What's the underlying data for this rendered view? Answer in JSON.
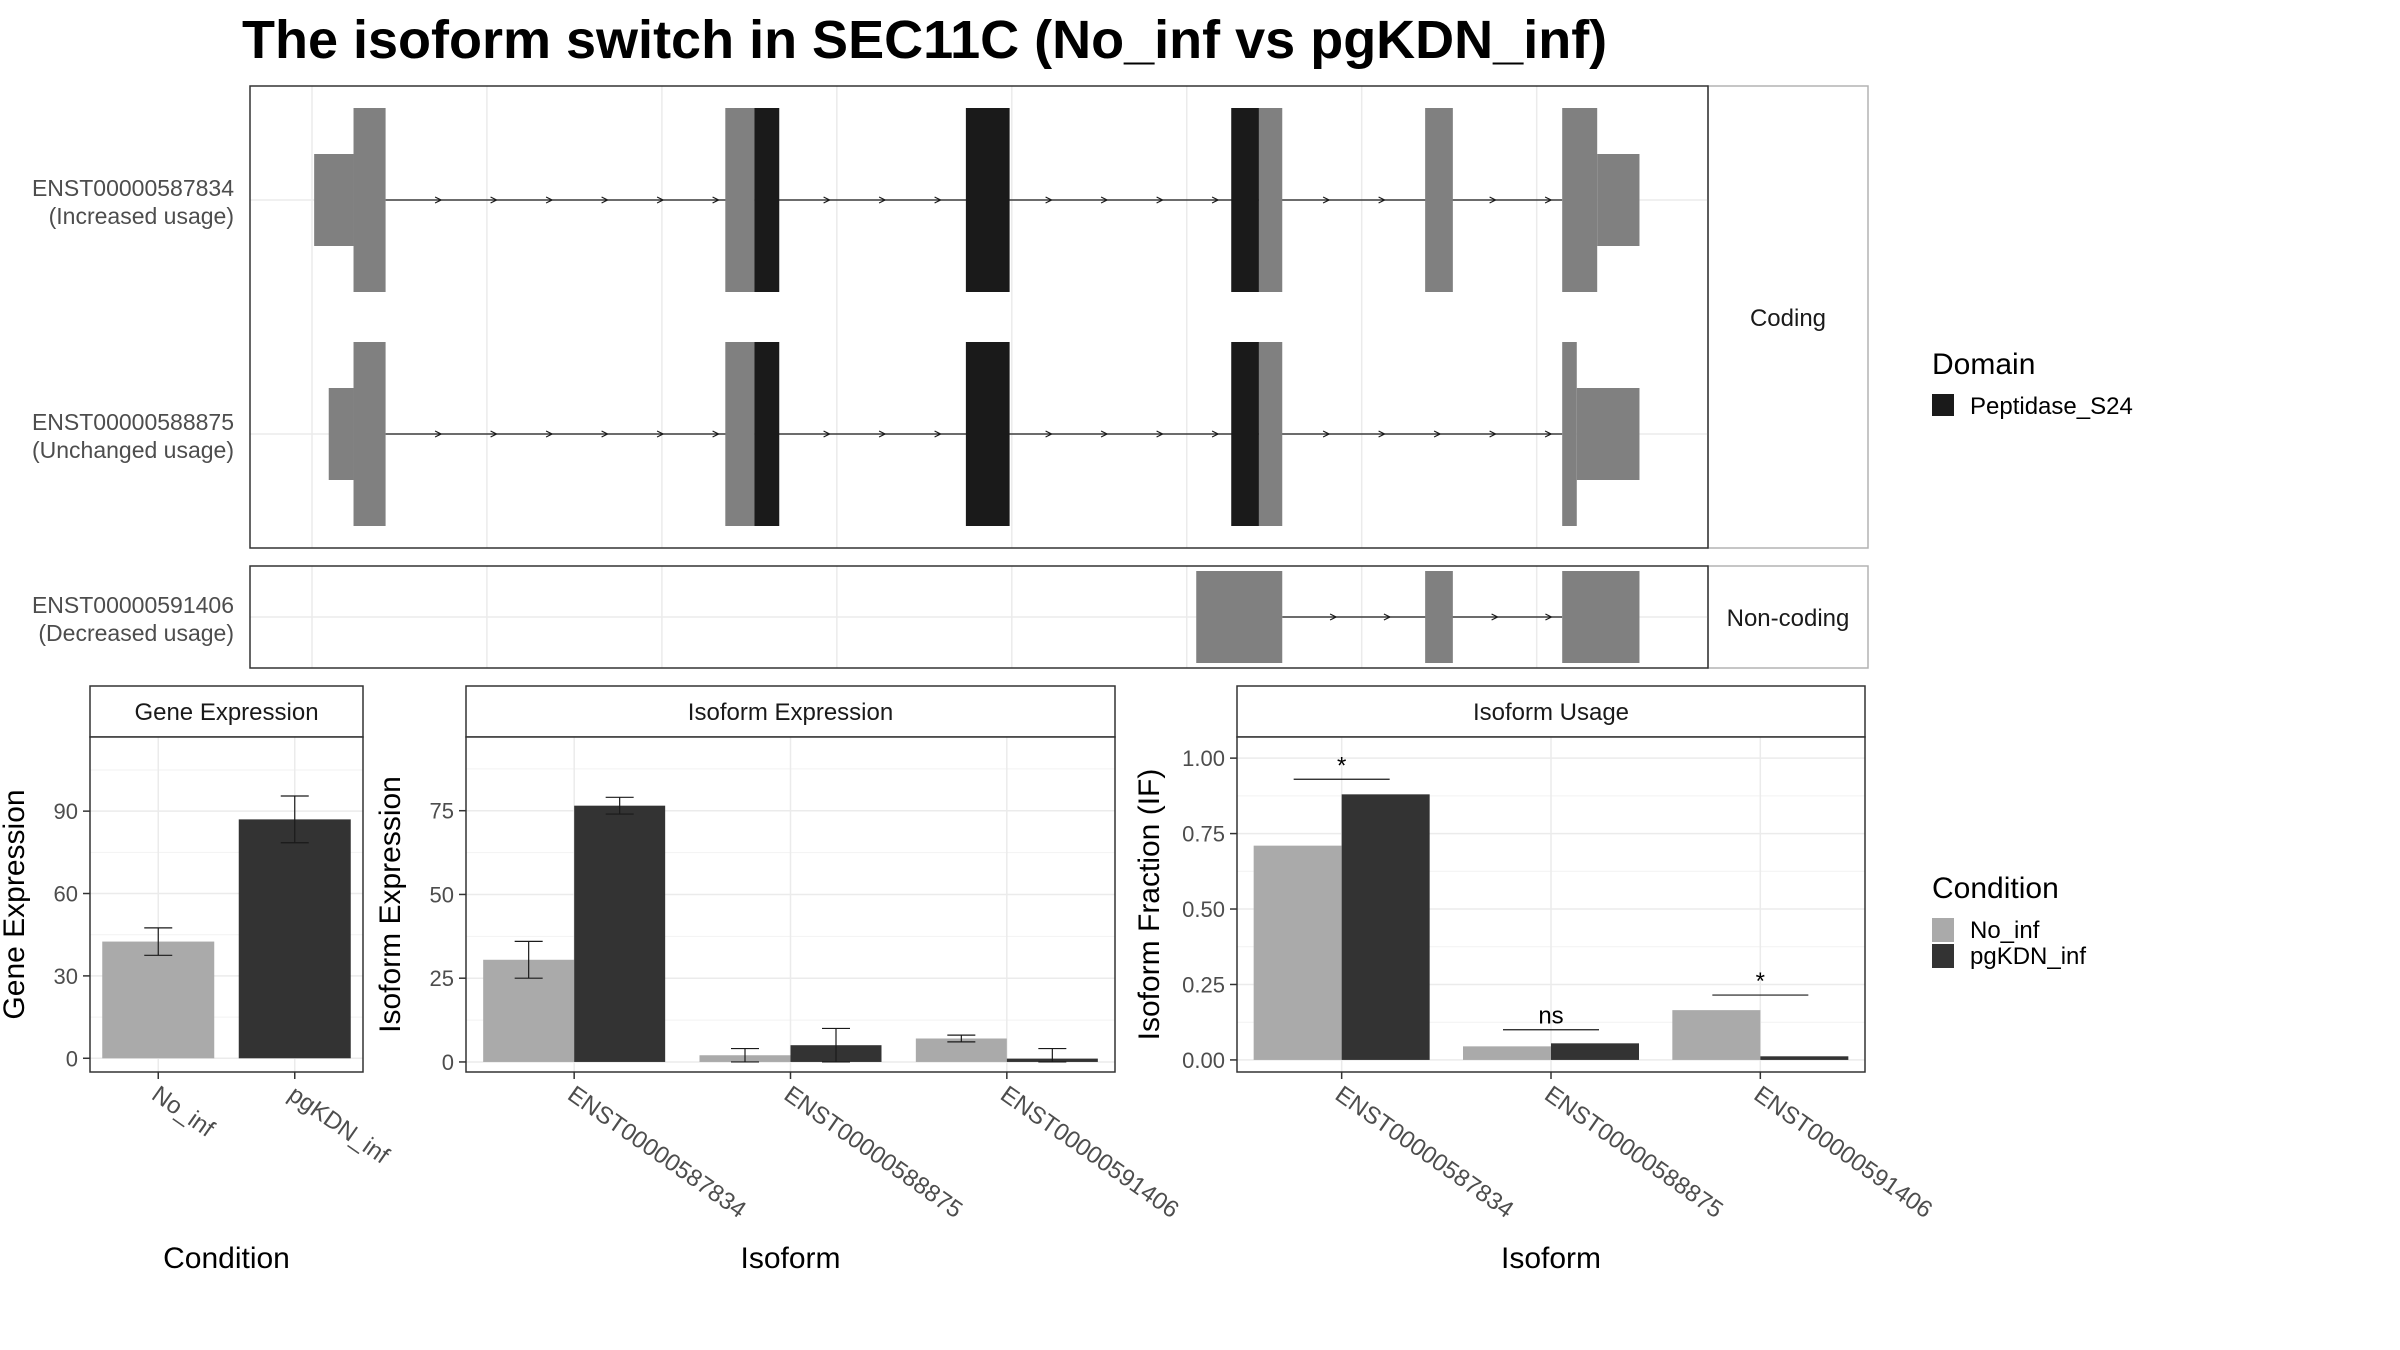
{
  "title": "The isoform switch in SEC11C (No_inf vs pgKDN_inf)",
  "colors": {
    "no_inf": "#aaaaaa",
    "pgkdn_inf": "#333333",
    "exon": "#808080",
    "domain": "#1a1a1a",
    "grid": "#ebebeb",
    "panel_border": "#333333",
    "strip_border": "#b3b3b3",
    "text": "#4d4d4d"
  },
  "structure": {
    "x_range": [
      0,
      1000
    ],
    "grid_x": [
      42.5,
      162.5,
      282.5,
      402.5,
      522.5,
      642.5,
      762.5,
      882.5
    ],
    "coding_label": "Coding",
    "noncoding_label": "Non-coding",
    "transcripts": [
      {
        "id": "ENST00000587834",
        "usage": "(Increased usage)",
        "group": "coding",
        "exons": [
          {
            "start": 44,
            "end": 71,
            "type": "utr"
          },
          {
            "start": 71,
            "end": 93,
            "type": "cds"
          },
          {
            "start": 326,
            "end": 346,
            "type": "cds"
          },
          {
            "start": 346,
            "end": 363,
            "type": "domain"
          },
          {
            "start": 491,
            "end": 521,
            "type": "domain"
          },
          {
            "start": 673,
            "end": 692,
            "type": "domain"
          },
          {
            "start": 692,
            "end": 708,
            "type": "cds"
          },
          {
            "start": 806,
            "end": 825,
            "type": "cds"
          },
          {
            "start": 900,
            "end": 924,
            "type": "cds"
          },
          {
            "start": 924,
            "end": 953,
            "type": "utr"
          }
        ],
        "intron_range": [
          93,
          900
        ]
      },
      {
        "id": "ENST00000588875",
        "usage": "(Unchanged usage)",
        "group": "coding",
        "exons": [
          {
            "start": 54,
            "end": 71,
            "type": "utr"
          },
          {
            "start": 71,
            "end": 93,
            "type": "cds"
          },
          {
            "start": 326,
            "end": 346,
            "type": "cds"
          },
          {
            "start": 346,
            "end": 363,
            "type": "domain"
          },
          {
            "start": 491,
            "end": 521,
            "type": "domain"
          },
          {
            "start": 673,
            "end": 692,
            "type": "domain"
          },
          {
            "start": 692,
            "end": 708,
            "type": "cds"
          },
          {
            "start": 900,
            "end": 910,
            "type": "cds"
          },
          {
            "start": 910,
            "end": 953,
            "type": "utr"
          }
        ],
        "intron_range": [
          93,
          900
        ]
      },
      {
        "id": "ENST00000591406",
        "usage": "(Decreased usage)",
        "group": "noncoding",
        "exons": [
          {
            "start": 649,
            "end": 708,
            "type": "nc"
          },
          {
            "start": 806,
            "end": 825,
            "type": "nc"
          },
          {
            "start": 900,
            "end": 953,
            "type": "nc"
          }
        ],
        "intron_range": [
          708,
          900
        ]
      }
    ]
  },
  "domain_legend": {
    "title": "Domain",
    "items": [
      "Peptidase_S24"
    ]
  },
  "condition_legend": {
    "title": "Condition",
    "items": [
      "No_inf",
      "pgKDN_inf"
    ]
  },
  "chart_data": [
    {
      "type": "bar",
      "strip": "Gene Expression",
      "xlabel": "Condition",
      "ylabel": "Gene Expression",
      "categories": [
        "No_inf",
        "pgKDN_inf"
      ],
      "ylim": [
        -5,
        117
      ],
      "yticks": [
        0,
        30,
        60,
        90
      ],
      "grouped": false,
      "values": [
        42.5,
        87
      ],
      "errors": [
        [
          37.5,
          47.5
        ],
        [
          78.5,
          95.5
        ]
      ],
      "sig": []
    },
    {
      "type": "bar",
      "strip": "Isoform Expression",
      "xlabel": "Isoform",
      "ylabel": "Isoform Expression",
      "categories": [
        "ENST00000587834",
        "ENST00000588875",
        "ENST00000591406"
      ],
      "ylim": [
        -3,
        97
      ],
      "yticks": [
        0,
        25,
        50,
        75
      ],
      "grouped": true,
      "series": [
        {
          "name": "No_inf",
          "values": [
            30.5,
            2,
            7
          ],
          "errors": [
            [
              25,
              36
            ],
            [
              0,
              4
            ],
            [
              6,
              8
            ]
          ]
        },
        {
          "name": "pgKDN_inf",
          "values": [
            76.5,
            5,
            1
          ],
          "errors": [
            [
              74,
              79
            ],
            [
              0,
              10
            ],
            [
              0,
              4
            ]
          ]
        }
      ],
      "sig": []
    },
    {
      "type": "bar",
      "strip": "Isoform Usage",
      "xlabel": "Isoform",
      "ylabel": "Isoform Fraction (IF)",
      "categories": [
        "ENST00000587834",
        "ENST00000588875",
        "ENST00000591406"
      ],
      "ylim": [
        -0.04,
        1.07
      ],
      "yticks": [
        0,
        0.25,
        0.5,
        0.75,
        1
      ],
      "ytick_labels": [
        "0.00",
        "0.25",
        "0.50",
        "0.75",
        "1.00"
      ],
      "grouped": true,
      "series": [
        {
          "name": "No_inf",
          "values": [
            0.71,
            0.045,
            0.165
          ]
        },
        {
          "name": "pgKDN_inf",
          "values": [
            0.88,
            0.055,
            0.012
          ]
        }
      ],
      "sig": [
        {
          "category": 0,
          "label": "*",
          "y": 0.93
        },
        {
          "category": 1,
          "label": "ns",
          "y": 0.1
        },
        {
          "category": 2,
          "label": "*",
          "y": 0.215
        }
      ]
    }
  ]
}
